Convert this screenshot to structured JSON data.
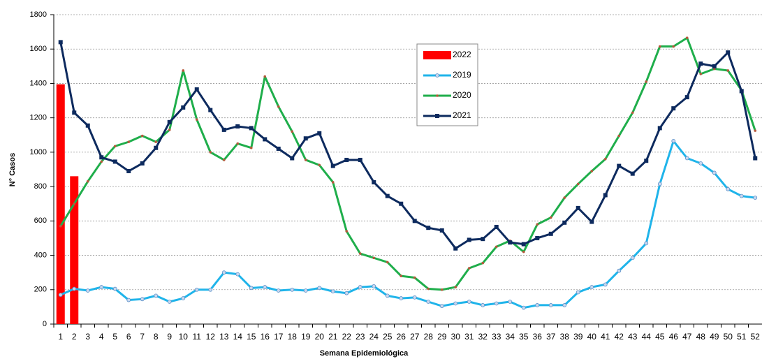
{
  "chart_data": {
    "type": "line",
    "xlabel": "Semana Epidemiológica",
    "ylabel": "N° Casos",
    "categories": [
      "1",
      "2",
      "3",
      "4",
      "5",
      "6",
      "7",
      "8",
      "9",
      "10",
      "11",
      "12",
      "13",
      "14",
      "15",
      "16",
      "17",
      "18",
      "19",
      "20",
      "21",
      "22",
      "23",
      "24",
      "25",
      "26",
      "27",
      "28",
      "29",
      "30",
      "31",
      "32",
      "33",
      "34",
      "35",
      "36",
      "37",
      "38",
      "39",
      "40",
      "41",
      "42",
      "43",
      "44",
      "45",
      "46",
      "47",
      "48",
      "49",
      "50",
      "51",
      "52"
    ],
    "ylim": [
      0,
      1800
    ],
    "yticks": [
      0,
      200,
      400,
      600,
      800,
      1000,
      1200,
      1400,
      1600,
      1800
    ],
    "grid": true,
    "series": [
      {
        "name": "2022",
        "type": "bar",
        "color": "#ff0000",
        "values": [
          1395,
          860,
          null,
          null,
          null,
          null,
          null,
          null,
          null,
          null,
          null,
          null,
          null,
          null,
          null,
          null,
          null,
          null,
          null,
          null,
          null,
          null,
          null,
          null,
          null,
          null,
          null,
          null,
          null,
          null,
          null,
          null,
          null,
          null,
          null,
          null,
          null,
          null,
          null,
          null,
          null,
          null,
          null,
          null,
          null,
          null,
          null,
          null,
          null,
          null,
          null,
          null
        ]
      },
      {
        "name": "2019",
        "type": "line",
        "color": "#1fb4ea",
        "values": [
          170,
          205,
          195,
          215,
          205,
          140,
          145,
          165,
          130,
          150,
          200,
          200,
          300,
          290,
          210,
          215,
          195,
          200,
          195,
          210,
          190,
          180,
          215,
          220,
          165,
          150,
          155,
          130,
          105,
          120,
          130,
          110,
          120,
          130,
          95,
          110,
          110,
          110,
          185,
          215,
          230,
          310,
          385,
          470,
          815,
          1065,
          965,
          935,
          880,
          785,
          745,
          735
        ]
      },
      {
        "name": "2020",
        "type": "line",
        "color": "#1fae4b",
        "values": [
          570,
          700,
          830,
          945,
          1035,
          1060,
          1095,
          1060,
          1130,
          1475,
          1190,
          1000,
          955,
          1050,
          1025,
          1440,
          1265,
          1120,
          955,
          925,
          825,
          540,
          410,
          385,
          360,
          280,
          270,
          205,
          200,
          215,
          325,
          355,
          450,
          485,
          420,
          580,
          620,
          735,
          815,
          890,
          960,
          1095,
          1230,
          1410,
          1615,
          1615,
          1665,
          1455,
          1485,
          1475,
          1360,
          1125
        ]
      },
      {
        "name": "2021",
        "type": "line",
        "color": "#0d2a5e",
        "values": [
          1640,
          1230,
          1155,
          970,
          945,
          890,
          935,
          1025,
          1175,
          1260,
          1365,
          1245,
          1130,
          1150,
          1140,
          1075,
          1020,
          965,
          1080,
          1110,
          920,
          955,
          955,
          825,
          745,
          700,
          600,
          560,
          545,
          440,
          490,
          495,
          565,
          475,
          465,
          500,
          525,
          590,
          675,
          595,
          750,
          920,
          875,
          950,
          1140,
          1255,
          1320,
          1515,
          1500,
          1580,
          1355,
          965
        ]
      }
    ]
  }
}
